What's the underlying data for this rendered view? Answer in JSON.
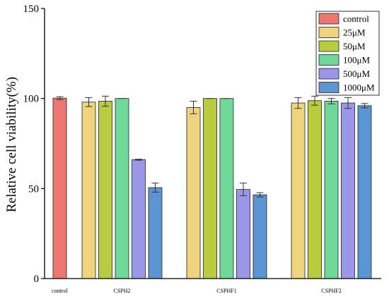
{
  "chart_data": {
    "type": "bar",
    "title": "",
    "xlabel": "",
    "ylabel": "Relative cell viability(%)",
    "ylim": [
      0,
      150
    ],
    "yticks": [
      0,
      50,
      100,
      150
    ],
    "grid": false,
    "legend_position": "top-right",
    "legend": [
      "control",
      "25μM",
      "50μM",
      "100μM",
      "500μM",
      "1000μM"
    ],
    "colors": {
      "control": "#EE7670",
      "25μM": "#EFD47F",
      "50μM": "#B7CC3E",
      "100μM": "#6FD899",
      "500μM": "#9A97E8",
      "1000μM": "#5B96D2"
    },
    "groups": [
      {
        "label": "control",
        "bars": [
          {
            "series": "control",
            "value": 100.2,
            "error": 0.8
          }
        ]
      },
      {
        "label": "CSPH2",
        "bars": [
          {
            "series": "25μM",
            "value": 98.0,
            "error": 2.5
          },
          {
            "series": "50μM",
            "value": 98.5,
            "error": 2.8
          },
          {
            "series": "100μM",
            "value": 100.0,
            "error": 0
          },
          {
            "series": "500μM",
            "value": 66.0,
            "error": 0.3
          },
          {
            "series": "1000μM",
            "value": 50.5,
            "error": 2.5
          }
        ]
      },
      {
        "label": "CSPHF1",
        "bars": [
          {
            "series": "25μM",
            "value": 95.0,
            "error": 3.5
          },
          {
            "series": "50μM",
            "value": 100.0,
            "error": 0
          },
          {
            "series": "100μM",
            "value": 100.0,
            "error": 0
          },
          {
            "series": "500μM",
            "value": 49.5,
            "error": 3.5
          },
          {
            "series": "1000μM",
            "value": 46.5,
            "error": 1.2
          }
        ]
      },
      {
        "label": "CSPHF2",
        "bars": [
          {
            "series": "25μM",
            "value": 97.5,
            "error": 3.0
          },
          {
            "series": "50μM",
            "value": 98.8,
            "error": 2.5
          },
          {
            "series": "100μM",
            "value": 98.5,
            "error": 1.5
          },
          {
            "series": "500μM",
            "value": 97.5,
            "error": 3.0
          },
          {
            "series": "1000μM",
            "value": 96.0,
            "error": 1.2
          }
        ]
      }
    ]
  }
}
